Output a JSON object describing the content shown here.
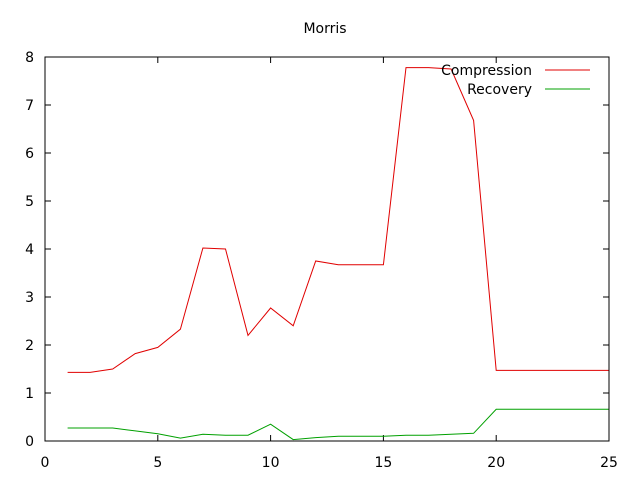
{
  "chart_data": {
    "type": "line",
    "title": "Morris",
    "xlabel": "",
    "ylabel": "",
    "xlim": [
      0,
      25
    ],
    "ylim": [
      0,
      8
    ],
    "xticks": [
      0,
      5,
      10,
      15,
      20,
      25
    ],
    "yticks": [
      0,
      1,
      2,
      3,
      4,
      5,
      6,
      7,
      8
    ],
    "grid": false,
    "legend_position": "top-right",
    "series": [
      {
        "name": "Compression",
        "color": "#e00000",
        "x": [
          1,
          2,
          3,
          4,
          5,
          6,
          7,
          8,
          9,
          10,
          11,
          12,
          13,
          14,
          15,
          16,
          17,
          18,
          19,
          20,
          21,
          22,
          23,
          24,
          25
        ],
        "y": [
          1.43,
          1.43,
          1.5,
          1.82,
          1.95,
          2.33,
          4.02,
          4.0,
          2.2,
          2.77,
          2.4,
          3.75,
          3.67,
          3.67,
          3.67,
          7.78,
          7.78,
          7.75,
          6.68,
          1.47,
          1.47,
          1.47,
          1.47,
          1.47,
          1.47
        ]
      },
      {
        "name": "Recovery",
        "color": "#00a000",
        "x": [
          1,
          2,
          3,
          4,
          5,
          6,
          7,
          8,
          9,
          10,
          11,
          12,
          13,
          14,
          15,
          16,
          17,
          18,
          19,
          20,
          21,
          22,
          23,
          24,
          25
        ],
        "y": [
          0.27,
          0.27,
          0.27,
          0.21,
          0.15,
          0.06,
          0.14,
          0.12,
          0.12,
          0.35,
          0.03,
          0.07,
          0.1,
          0.1,
          0.1,
          0.12,
          0.12,
          0.14,
          0.16,
          0.66,
          0.66,
          0.66,
          0.66,
          0.66,
          0.66
        ]
      }
    ]
  }
}
